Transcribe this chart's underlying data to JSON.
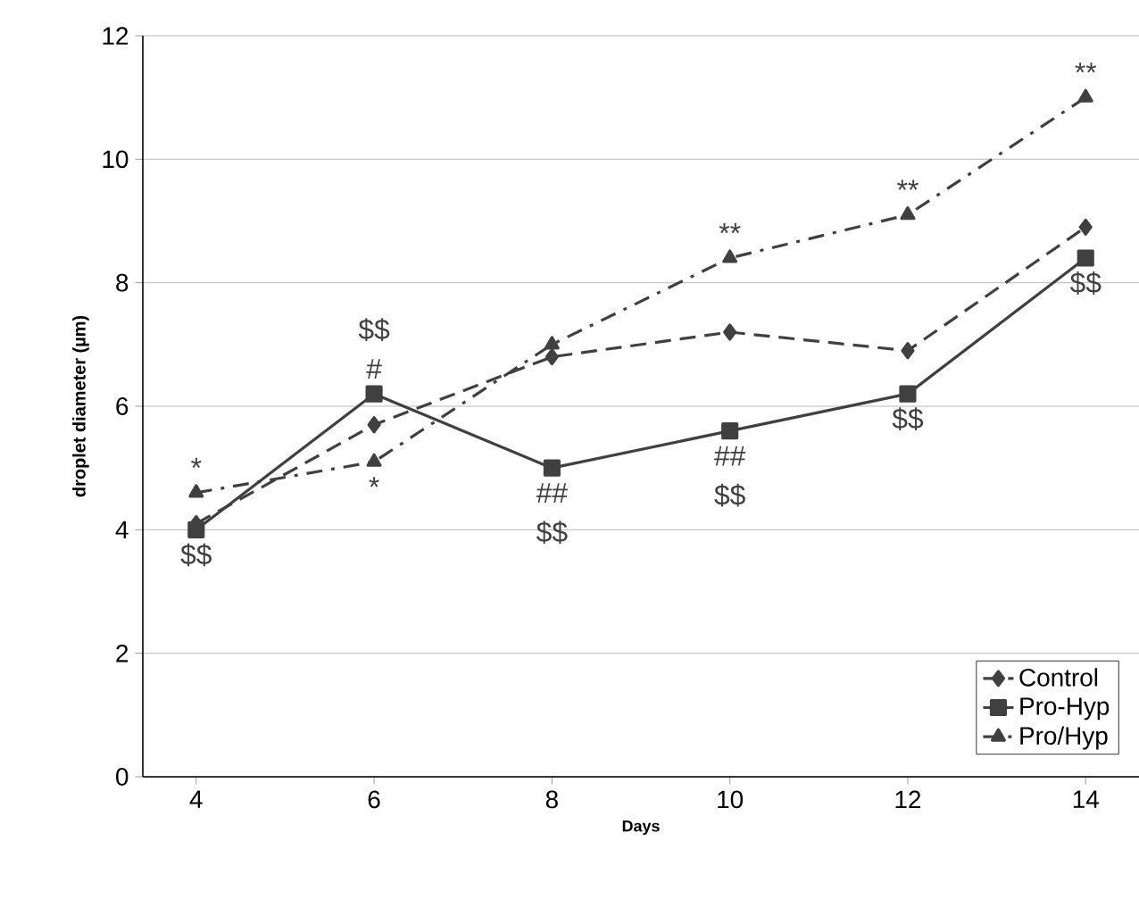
{
  "chart_data": {
    "type": "line",
    "xlabel": "Days",
    "ylabel": "droplet diameter (µm)",
    "x": [
      4,
      6,
      8,
      10,
      12,
      14
    ],
    "series": [
      {
        "name": "Control",
        "color": "#404040",
        "marker": "diamond",
        "line_style": "dashed",
        "values": [
          4.1,
          5.7,
          6.8,
          7.2,
          6.9,
          8.9
        ]
      },
      {
        "name": "Pro-Hyp",
        "color": "#404040",
        "marker": "square",
        "line_style": "solid",
        "values": [
          4.0,
          6.2,
          5.0,
          5.6,
          6.2,
          8.4
        ]
      },
      {
        "name": "Pro/Hyp",
        "color": "#404040",
        "marker": "triangle",
        "line_style": "dashdot",
        "values": [
          4.6,
          5.1,
          7.0,
          8.4,
          9.1,
          11.0
        ]
      }
    ],
    "xlim": [
      3.4,
      14.6
    ],
    "xticks": [
      4,
      6,
      8,
      10,
      12,
      14
    ],
    "ylim": [
      0,
      12
    ],
    "yticks": [
      0,
      2,
      4,
      6,
      8,
      10,
      12
    ],
    "grid": "y",
    "legend": "bottom right",
    "annotations": [
      {
        "text": "*",
        "x": 4,
        "y": 4.6
      },
      {
        "text": "$$",
        "x": 4,
        "y": 4.0
      },
      {
        "text": "#",
        "x": 6,
        "y": 6.2
      },
      {
        "text": "$$",
        "x": 6,
        "y": 6.2
      },
      {
        "text": "*",
        "x": 6,
        "y": 5.1
      },
      {
        "text": "##",
        "x": 8,
        "y": 5.0
      },
      {
        "text": "$$",
        "x": 8,
        "y": 5.0
      },
      {
        "text": "##",
        "x": 10,
        "y": 5.6
      },
      {
        "text": "$$",
        "x": 10,
        "y": 5.6
      },
      {
        "text": "**",
        "x": 10,
        "y": 8.4
      },
      {
        "text": "**",
        "x": 12,
        "y": 9.1
      },
      {
        "text": "$$",
        "x": 12,
        "y": 6.2
      },
      {
        "text": "**",
        "x": 14,
        "y": 11.0
      },
      {
        "text": "$$",
        "x": 14,
        "y": 8.4
      }
    ]
  }
}
